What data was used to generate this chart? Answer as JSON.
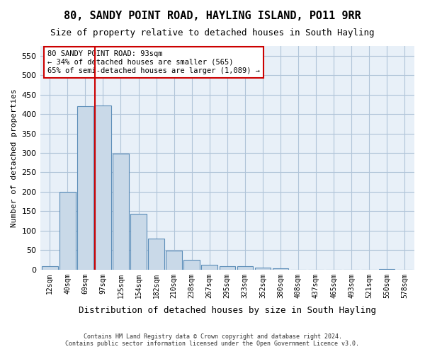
{
  "title": "80, SANDY POINT ROAD, HAYLING ISLAND, PO11 9RR",
  "subtitle": "Size of property relative to detached houses in South Hayling",
  "xlabel": "Distribution of detached houses by size in South Hayling",
  "ylabel": "Number of detached properties",
  "bar_color": "#c9d9e8",
  "bar_edge_color": "#5b8db8",
  "grid_color": "#b0c4d8",
  "background_color": "#e8f0f8",
  "annotation_box_color": "#cc0000",
  "vline_color": "#cc0000",
  "categories": [
    "12sqm",
    "40sqm",
    "69sqm",
    "97sqm",
    "125sqm",
    "154sqm",
    "182sqm",
    "210sqm",
    "238sqm",
    "267sqm",
    "295sqm",
    "323sqm",
    "352sqm",
    "380sqm",
    "408sqm",
    "437sqm",
    "465sqm",
    "493sqm",
    "521sqm",
    "550sqm",
    "578sqm"
  ],
  "values": [
    8,
    200,
    420,
    422,
    298,
    143,
    79,
    48,
    25,
    12,
    9,
    8,
    5,
    4,
    0,
    0,
    0,
    0,
    0,
    2,
    0
  ],
  "vline_x": 3,
  "annotation_text": "80 SANDY POINT ROAD: 93sqm\n← 34% of detached houses are smaller (565)\n65% of semi-detached houses are larger (1,089) →",
  "ylim": [
    0,
    575
  ],
  "yticks": [
    0,
    50,
    100,
    150,
    200,
    250,
    300,
    350,
    400,
    450,
    500,
    550
  ],
  "footer_line1": "Contains HM Land Registry data © Crown copyright and database right 2024.",
  "footer_line2": "Contains public sector information licensed under the Open Government Licence v3.0."
}
